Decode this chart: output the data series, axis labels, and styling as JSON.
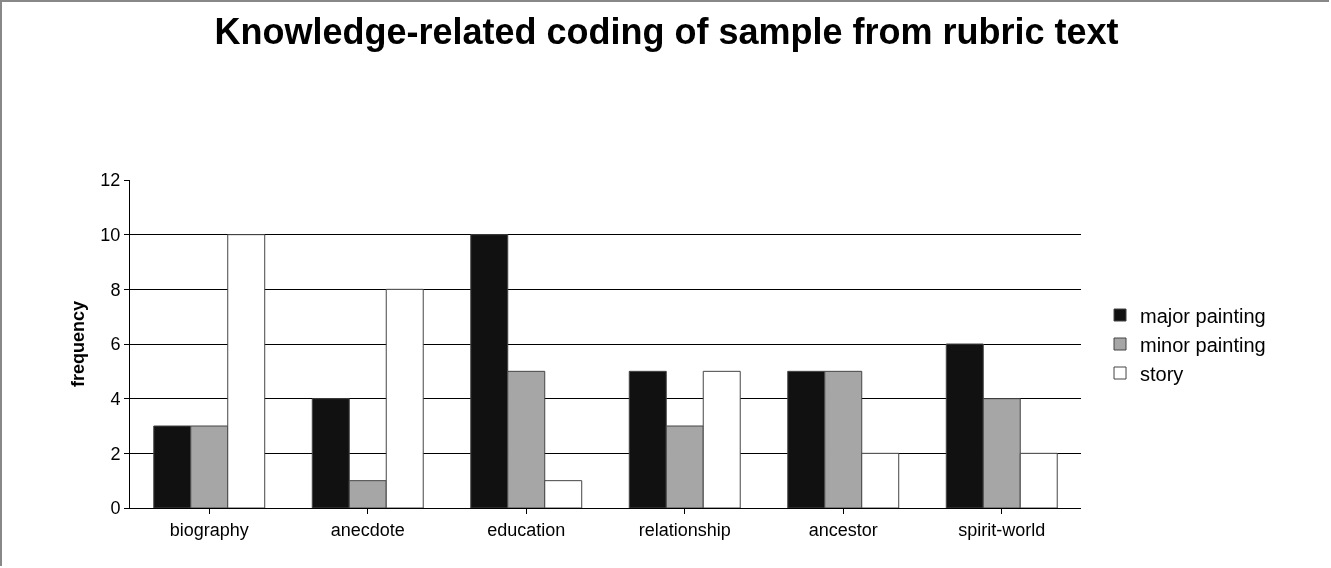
{
  "chart_data": {
    "type": "bar",
    "title": "Knowledge-related coding of sample from rubric text",
    "ylabel": "frequency",
    "categories": [
      "biography",
      "anecdote",
      "education",
      "relationship",
      "ancestor",
      "spirit-world"
    ],
    "series": [
      {
        "name": "major painting",
        "color": "#111111",
        "values": [
          3,
          4,
          10,
          5,
          5,
          6
        ]
      },
      {
        "name": "minor painting",
        "color": "#a6a6a6",
        "values": [
          3,
          1,
          5,
          3,
          5,
          4
        ]
      },
      {
        "name": "story",
        "color": "#ffffff",
        "values": [
          10,
          8,
          1,
          5,
          2,
          2
        ]
      }
    ],
    "ylim": [
      0,
      12
    ],
    "yticks": [
      0,
      2,
      4,
      6,
      8,
      10,
      12
    ],
    "grid": "y",
    "legend": "right"
  }
}
